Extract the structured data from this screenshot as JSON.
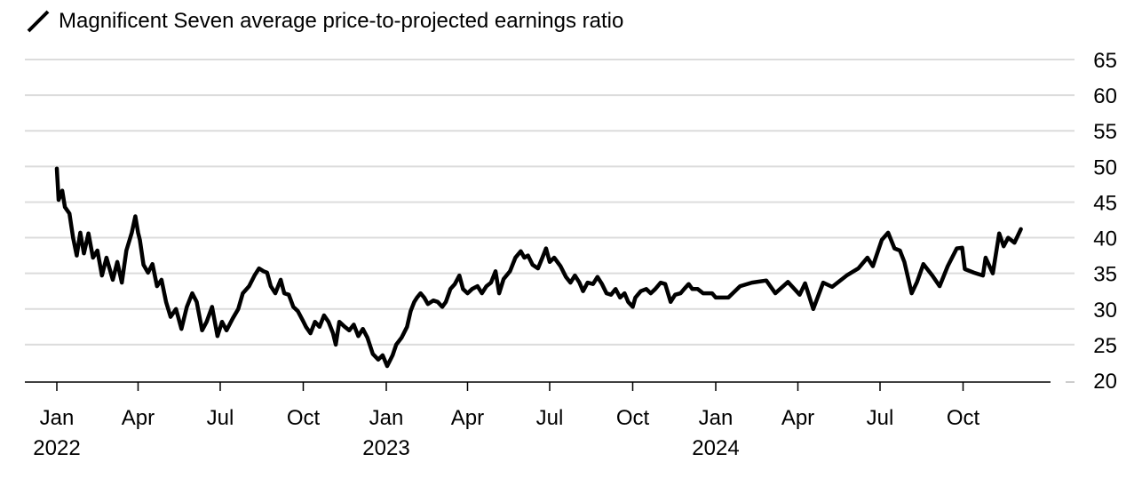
{
  "title": "Magnificent Seven average price-to-projected earnings ratio",
  "legend_icon": "line-swatch-icon",
  "chart_data": {
    "type": "line",
    "title": "Magnificent Seven average price-to-projected earnings ratio",
    "xlabel": "",
    "ylabel": "",
    "x_unit": "days since 2022-01-01",
    "ylim": [
      20,
      65
    ],
    "xlim": [
      -35,
      1115
    ],
    "y_ticks": [
      20,
      25,
      30,
      35,
      40,
      45,
      50,
      55,
      60,
      65
    ],
    "y_tick_labels": [
      "20",
      "25",
      "30",
      "35",
      "40",
      "45",
      "50",
      "55",
      "60",
      "65"
    ],
    "x_ticks": [
      {
        "day": 0,
        "label": "Jan",
        "year": "2022"
      },
      {
        "day": 90,
        "label": "Apr"
      },
      {
        "day": 181,
        "label": "Jul"
      },
      {
        "day": 273,
        "label": "Oct"
      },
      {
        "day": 365,
        "label": "Jan",
        "year": "2023"
      },
      {
        "day": 455,
        "label": "Apr"
      },
      {
        "day": 546,
        "label": "Jul"
      },
      {
        "day": 638,
        "label": "Oct"
      },
      {
        "day": 730,
        "label": "Jan",
        "year": "2024"
      },
      {
        "day": 821,
        "label": "Apr"
      },
      {
        "day": 912,
        "label": "Jul"
      },
      {
        "day": 1004,
        "label": "Oct"
      }
    ],
    "grid": true,
    "series": [
      {
        "name": "Magnificent Seven average P/E",
        "color": "#000000",
        "x": [
          0,
          2,
          6,
          9,
          14,
          18,
          22,
          26,
          30,
          35,
          40,
          45,
          50,
          55,
          62,
          67,
          72,
          77,
          83,
          87,
          90,
          92,
          96,
          101,
          106,
          111,
          116,
          121,
          126,
          132,
          138,
          144,
          150,
          155,
          161,
          166,
          172,
          178,
          183,
          188,
          195,
          201,
          206,
          213,
          219,
          224,
          229,
          233,
          237,
          242,
          248,
          252,
          257,
          262,
          267,
          272,
          276,
          281,
          286,
          291,
          296,
          301,
          306,
          309,
          313,
          319,
          324,
          329,
          334,
          339,
          344,
          350,
          356,
          361,
          366,
          372,
          376,
          382,
          388,
          392,
          396,
          399,
          403,
          407,
          411,
          417,
          422,
          427,
          431,
          436,
          441,
          446,
          450,
          455,
          460,
          466,
          471,
          476,
          481,
          486,
          490,
          495,
          502,
          508,
          514,
          518,
          522,
          527,
          533,
          538,
          542,
          546,
          551,
          558,
          564,
          569,
          574,
          579,
          583,
          588,
          594,
          599,
          604,
          609,
          614,
          619,
          624,
          629,
          633,
          638,
          641,
          647,
          653,
          658,
          663,
          669,
          674,
          680,
          685,
          691,
          695,
          700,
          704,
          710,
          716,
          721,
          726,
          730,
          744,
          757,
          770,
          786,
          796,
          810,
          823,
          829,
          838,
          849,
          859,
          875,
          888,
          898,
          904,
          914,
          921,
          928,
          934,
          939,
          947,
          953,
          960,
          970,
          978,
          987,
          997,
          1003,
          1006,
          1016,
          1026,
          1029,
          1037,
          1044,
          1049,
          1054,
          1061,
          1068
        ],
        "y": [
          49.7,
          45.3,
          46.6,
          44.3,
          43.4,
          40,
          37.5,
          40.7,
          37.8,
          40.6,
          37.2,
          38.2,
          34.7,
          37.2,
          34.1,
          36.6,
          33.7,
          38.2,
          40.7,
          43,
          40.7,
          39.7,
          36.2,
          35.1,
          36.3,
          33.2,
          34.1,
          31,
          28.9,
          30,
          27.2,
          30.3,
          32.2,
          31,
          27,
          28.2,
          30.3,
          26.2,
          28.2,
          27,
          28.7,
          30,
          32.2,
          33.2,
          34.7,
          35.7,
          35.3,
          35.1,
          33.2,
          32.2,
          34.1,
          32.2,
          32,
          30.3,
          29.7,
          28.5,
          27.5,
          26.6,
          28.2,
          27.5,
          29.1,
          28.2,
          26.6,
          25,
          28.2,
          27.5,
          27,
          27.8,
          26.2,
          27.2,
          26,
          23.7,
          22.9,
          23.5,
          22,
          23.5,
          25,
          26,
          27.5,
          29.7,
          31,
          31.6,
          32.2,
          31.6,
          30.7,
          31.2,
          31,
          30.3,
          31,
          32.8,
          33.5,
          34.7,
          32.8,
          32.2,
          32.8,
          33.2,
          32.2,
          33.2,
          33.7,
          35.3,
          32.2,
          34.2,
          35.3,
          37.2,
          38.1,
          37.2,
          37.5,
          36.2,
          35.7,
          37.2,
          38.5,
          36.6,
          37.2,
          36,
          34.5,
          33.7,
          34.7,
          33.7,
          32.5,
          33.7,
          33.5,
          34.5,
          33.5,
          32.2,
          32,
          32.8,
          31.6,
          32.2,
          31,
          30.3,
          31.6,
          32.5,
          32.8,
          32.2,
          32.8,
          33.7,
          33.5,
          31,
          32,
          32.2,
          32.8,
          33.5,
          32.8,
          32.8,
          32.2,
          32.2,
          32.2,
          31.6,
          31.6,
          33.2,
          33.7,
          34,
          32.2,
          33.8,
          32,
          33.6,
          30,
          33.7,
          33.1,
          34.7,
          35.7,
          37.2,
          36,
          39.7,
          40.7,
          38.5,
          38.2,
          36.6,
          32.2,
          33.8,
          36.3,
          34.7,
          33.2,
          36,
          38.5,
          38.6,
          35.6,
          35.1,
          34.7,
          37.2,
          35,
          40.6,
          38.8,
          40,
          39.3,
          41.2
        ]
      }
    ]
  }
}
